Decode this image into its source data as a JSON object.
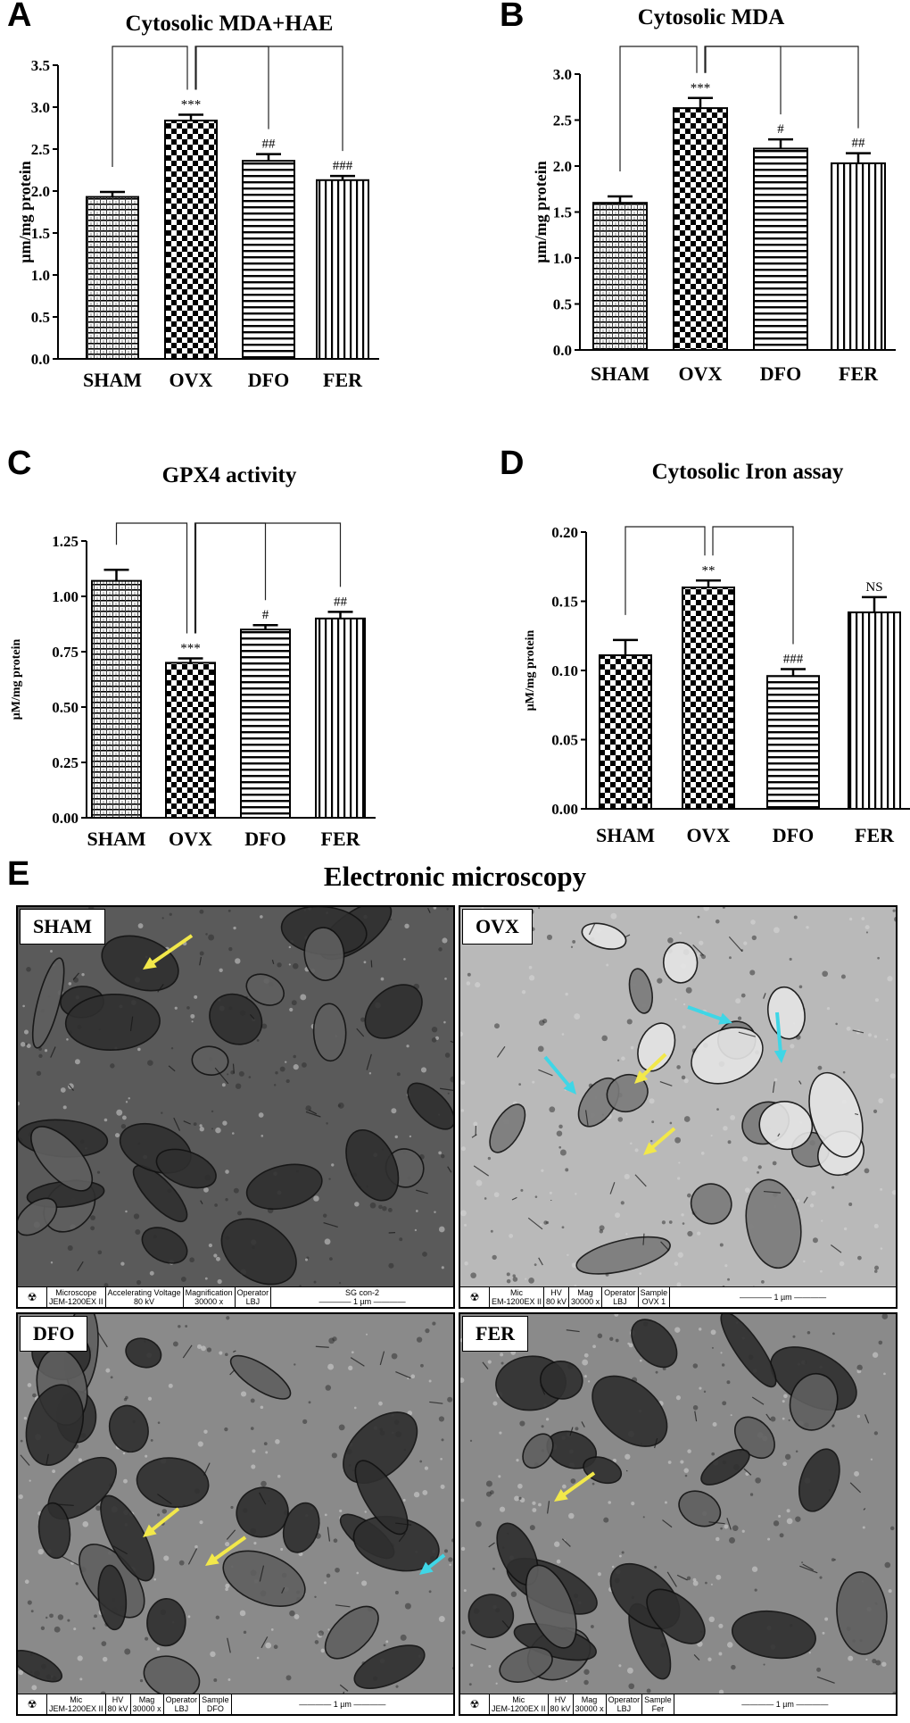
{
  "colors": {
    "arrow_yellow": "#f2e84a",
    "arrow_cyan": "#3fd6e6",
    "bar_edge": "#000000"
  },
  "panels": [
    {
      "letter": "A"
    },
    {
      "letter": "B"
    },
    {
      "letter": "C"
    },
    {
      "letter": "D"
    },
    {
      "letter": "E"
    }
  ],
  "chart_data": [
    {
      "panel": "A",
      "type": "bar",
      "title": "Cytosolic MDA+HAE",
      "ylabel": "µm/mg protein",
      "xlabel": "",
      "categories": [
        "SHAM",
        "OVX",
        "DFO",
        "FER"
      ],
      "values": [
        1.93,
        2.84,
        2.36,
        2.13
      ],
      "errors": [
        0.06,
        0.07,
        0.08,
        0.05
      ],
      "patterns": [
        "fine-grid",
        "checker",
        "horizontal",
        "vertical"
      ],
      "significance": [
        "",
        "***",
        "##",
        "###"
      ],
      "ylim": [
        0,
        3.5
      ],
      "yticks": [
        "0.0",
        "0.5",
        "1.0",
        "1.5",
        "2.0",
        "2.5",
        "3.0",
        "3.5"
      ],
      "comparison_bracket": {
        "from": "OVX",
        "to": [
          "SHAM",
          "DFO",
          "FER"
        ]
      }
    },
    {
      "panel": "B",
      "type": "bar",
      "title": "Cytosolic MDA",
      "ylabel": "µm/mg protein",
      "xlabel": "",
      "categories": [
        "SHAM",
        "OVX",
        "DFO",
        "FER"
      ],
      "values": [
        1.6,
        2.63,
        2.19,
        2.03
      ],
      "errors": [
        0.07,
        0.11,
        0.1,
        0.11
      ],
      "patterns": [
        "fine-grid",
        "checker",
        "horizontal",
        "vertical"
      ],
      "significance": [
        "",
        "***",
        "#",
        "##"
      ],
      "ylim": [
        0,
        3.0
      ],
      "yticks": [
        "0.0",
        "0.5",
        "1.0",
        "1.5",
        "2.0",
        "2.5",
        "3.0"
      ],
      "comparison_bracket": {
        "from": "OVX",
        "to": [
          "SHAM",
          "DFO",
          "FER"
        ]
      }
    },
    {
      "panel": "C",
      "type": "bar",
      "title": "GPX4 activity",
      "ylabel": "µM/mg protein",
      "xlabel": "",
      "categories": [
        "SHAM",
        "OVX",
        "DFO",
        "FER"
      ],
      "values": [
        1.07,
        0.7,
        0.85,
        0.9
      ],
      "errors": [
        0.05,
        0.02,
        0.02,
        0.03
      ],
      "patterns": [
        "fine-grid",
        "checker",
        "horizontal",
        "vertical"
      ],
      "significance": [
        "",
        "***",
        "#",
        "##"
      ],
      "ylim": [
        0,
        1.25
      ],
      "yticks": [
        "0.00",
        "0.25",
        "0.50",
        "0.75",
        "1.00",
        "1.25"
      ],
      "comparison_bracket": {
        "from": "OVX",
        "to": [
          "SHAM",
          "DFO",
          "FER"
        ]
      }
    },
    {
      "panel": "D",
      "type": "bar",
      "title": "Cytosolic Iron assay",
      "ylabel": "µM/mg protein",
      "xlabel": "",
      "categories": [
        "SHAM",
        "OVX",
        "DFO",
        "FER"
      ],
      "values": [
        0.111,
        0.16,
        0.096,
        0.142
      ],
      "errors": [
        0.011,
        0.005,
        0.005,
        0.011
      ],
      "patterns": [
        "checker",
        "checker",
        "horizontal",
        "vertical"
      ],
      "significance": [
        "",
        "**",
        "###",
        "NS"
      ],
      "ylim": [
        0,
        0.2
      ],
      "yticks": [
        "0.00",
        "0.05",
        "0.10",
        "0.15",
        "0.20"
      ],
      "comparison_bracket": {
        "from": "OVX",
        "to": [
          "SHAM",
          "DFO"
        ]
      }
    }
  ],
  "microscopy": {
    "title": "Electronic microscopy",
    "tiles": [
      {
        "label": "SHAM",
        "bar": [
          "Microscope|JEM-1200EX II",
          "Accelerating Voltage|80 kV",
          "Magnification|30000 x",
          "Operator|LBJ"
        ],
        "sample": "SG con-2",
        "scale": "1 µm",
        "tone": "dark",
        "arrows": [
          {
            "color": "yellow"
          }
        ]
      },
      {
        "label": "OVX",
        "bar": [
          "Mic|EM-1200EX II",
          "HV|80 kV",
          "Mag|30000 x",
          "Operator|LBJ",
          "Sample|OVX 1"
        ],
        "sample": "",
        "scale": "1 µm",
        "tone": "light",
        "arrows": [
          {
            "color": "cyan"
          },
          {
            "color": "cyan"
          },
          {
            "color": "cyan"
          },
          {
            "color": "yellow"
          },
          {
            "color": "yellow"
          }
        ]
      },
      {
        "label": "DFO",
        "bar": [
          "Mic|JEM-1200EX II",
          "HV|80 kV",
          "Mag|30000 x",
          "Operator|LBJ",
          "Sample|DFO"
        ],
        "sample": "",
        "scale": "1 µm",
        "tone": "mid",
        "arrows": [
          {
            "color": "yellow"
          },
          {
            "color": "yellow"
          },
          {
            "color": "cyan"
          }
        ]
      },
      {
        "label": "FER",
        "bar": [
          "Mic|JEM-1200EX II",
          "HV|80 kV",
          "Mag|30000 x",
          "Operator|LBJ",
          "Sample|Fer"
        ],
        "sample": "",
        "scale": "1 µm",
        "tone": "mid",
        "arrows": [
          {
            "color": "yellow"
          }
        ]
      }
    ]
  }
}
